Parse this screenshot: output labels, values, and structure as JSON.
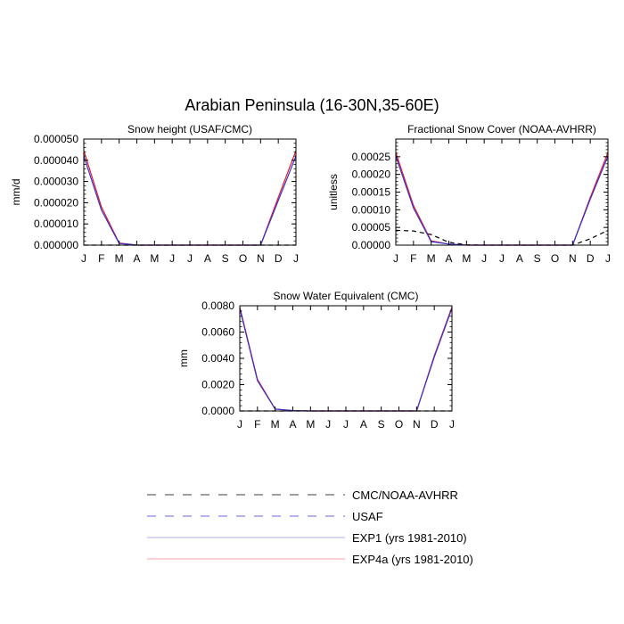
{
  "figure": {
    "title": "Arabian Peninsula (16-30N,35-60E)"
  },
  "months": [
    "J",
    "F",
    "M",
    "A",
    "M",
    "J",
    "J",
    "A",
    "S",
    "O",
    "N",
    "D",
    "J"
  ],
  "colors": {
    "exp1": "#3333cc",
    "exp4a": "#e8192c",
    "obs": "#000000"
  },
  "legend": {
    "items": [
      {
        "label": "CMC/NOAA-AVHRR",
        "color": "#000000",
        "dash": "dashed"
      },
      {
        "label": "USAF",
        "color": "#3333cc",
        "dash": "dashed"
      },
      {
        "label": "EXP1 (yrs 1981-2010)",
        "color": "#3333cc",
        "dash": "solid"
      },
      {
        "label": "EXP4a (yrs 1981-2010)",
        "color": "#e8192c",
        "dash": "solid"
      }
    ]
  },
  "chart_data": [
    {
      "type": "line",
      "title": "Snow height (USAF/CMC)",
      "ylabel": "mm/d",
      "ylim": [
        0,
        5e-05
      ],
      "yticks": [
        "0.000000",
        "0.000010",
        "0.000020",
        "0.000030",
        "0.000040",
        "0.000050"
      ],
      "yvalues": [
        0,
        1e-05,
        2e-05,
        3e-05,
        4e-05,
        5e-05
      ],
      "series": [
        {
          "key": "exp4a",
          "dash": "solid",
          "values": [
            4.45e-05,
            1.8e-05,
            1e-06,
            0,
            0,
            0,
            0,
            0,
            0,
            0,
            0,
            2.25e-05,
            4.45e-05
          ]
        },
        {
          "key": "exp1",
          "dash": "solid",
          "values": [
            4.2e-05,
            1.65e-05,
            8e-07,
            0,
            0,
            0,
            0,
            0,
            0,
            0,
            0,
            2.1e-05,
            4.2e-05
          ]
        },
        {
          "key": "obs",
          "dash": "dashed",
          "values": [
            0,
            0,
            0,
            0,
            0,
            0,
            0,
            0,
            0,
            0,
            0,
            0,
            0
          ]
        }
      ]
    },
    {
      "type": "line",
      "title": "Fractional Snow Cover (NOAA-AVHRR)",
      "ylabel": "unitless",
      "ylim": [
        0,
        0.0003
      ],
      "yticks": [
        "0.00000",
        "0.00005",
        "0.00010",
        "0.00015",
        "0.00020",
        "0.00025"
      ],
      "yvalues": [
        0,
        5e-05,
        0.0001,
        0.00015,
        0.0002,
        0.00025
      ],
      "series": [
        {
          "key": "exp4a",
          "dash": "solid",
          "values": [
            0.000262,
            0.000112,
            1.2e-05,
            3e-06,
            0,
            0,
            0,
            0,
            0,
            0,
            0,
            0.000135,
            0.000262
          ]
        },
        {
          "key": "exp1",
          "dash": "solid",
          "values": [
            0.000252,
            0.000105,
            1e-05,
            3e-06,
            0,
            0,
            0,
            0,
            0,
            0,
            0,
            0.00013,
            0.000252
          ]
        },
        {
          "key": "obs",
          "dash": "dashed",
          "values": [
            4.2e-05,
            4e-05,
            3e-05,
            8e-06,
            1e-06,
            0,
            0,
            0,
            0,
            0,
            0,
            1.8e-05,
            4.2e-05
          ]
        }
      ]
    },
    {
      "type": "line",
      "title": "Snow Water Equivalent (CMC)",
      "ylabel": "mm",
      "ylim": [
        0,
        0.008
      ],
      "yticks": [
        "0.0000",
        "0.0020",
        "0.0040",
        "0.0060",
        "0.0080"
      ],
      "yvalues": [
        0,
        0.002,
        0.004,
        0.006,
        0.008
      ],
      "series": [
        {
          "key": "exp4a",
          "dash": "solid",
          "values": [
            0.0079,
            0.0024,
            0.00015,
            3e-05,
            0,
            0,
            0,
            0,
            0,
            0,
            0,
            0.0042,
            0.0079
          ]
        },
        {
          "key": "exp1",
          "dash": "solid",
          "values": [
            0.0078,
            0.0023,
            0.00014,
            3e-05,
            0,
            0,
            0,
            0,
            0,
            0,
            0,
            0.0041,
            0.0078
          ]
        },
        {
          "key": "obs",
          "dash": "dashed",
          "values": [
            0,
            0,
            0,
            0,
            0,
            0,
            0,
            0,
            0,
            0,
            0,
            0,
            0
          ]
        }
      ]
    }
  ]
}
